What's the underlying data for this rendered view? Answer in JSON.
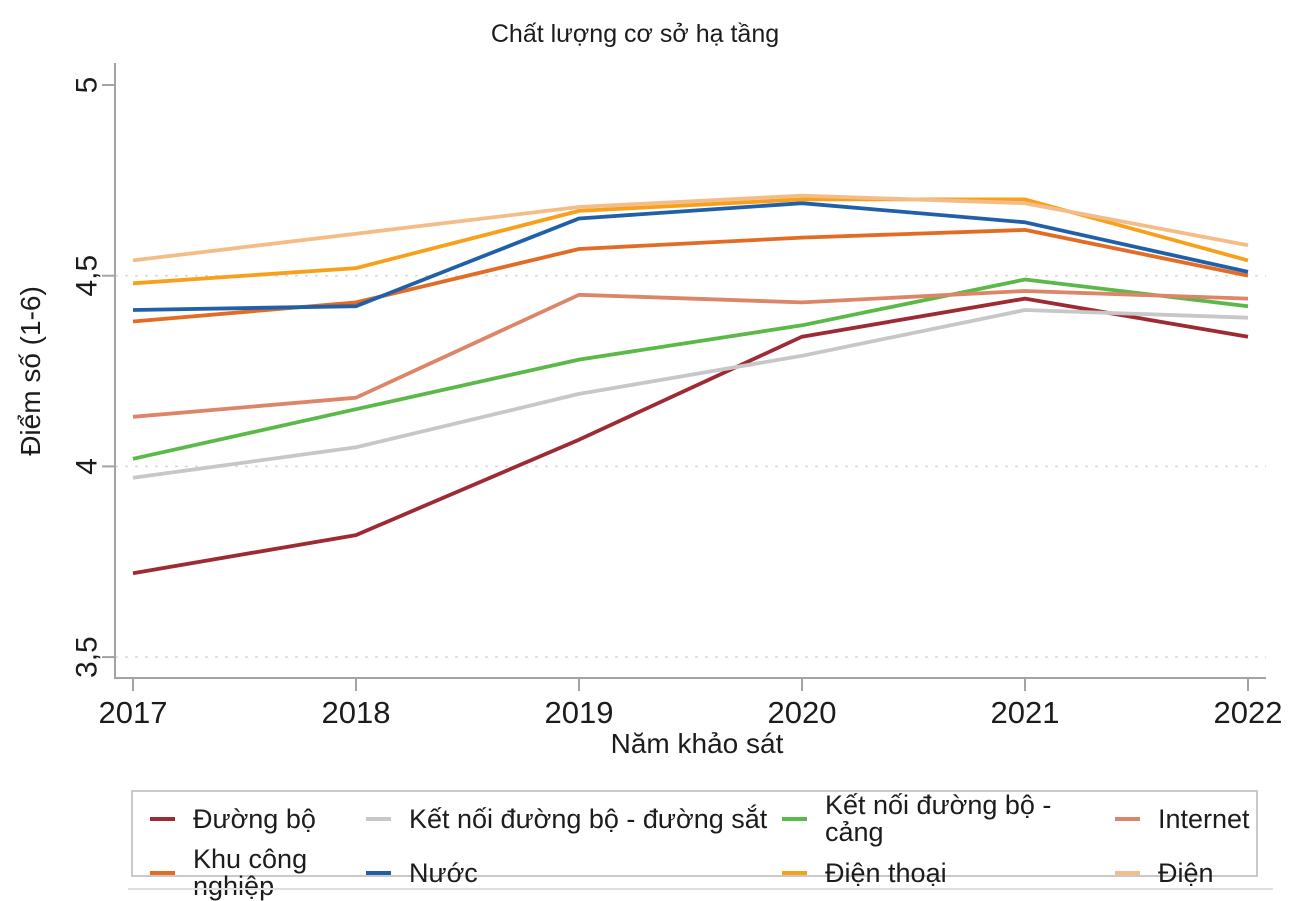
{
  "chart_data": {
    "type": "line",
    "title": "Chất lượng cơ sở hạ tầng",
    "xlabel": "Năm khảo sát",
    "ylabel": "Điểm số (1-6)",
    "x": [
      2017,
      2018,
      2019,
      2020,
      2021,
      2022
    ],
    "xticklabels": [
      "2017",
      "2018",
      "2019",
      "2020",
      "2021",
      "2022"
    ],
    "ylim": [
      3.5,
      5
    ],
    "yticks": [
      5,
      4.5,
      4,
      3.5
    ],
    "yticklabels": [
      "5",
      "4,5",
      "4",
      "3,5"
    ],
    "grid_y": [
      4.5,
      4,
      3.5
    ],
    "grid_style": "dashed",
    "legend_position": "bottom",
    "series": [
      {
        "id": "duong-bo",
        "label": "Đường bộ",
        "color": "#9e2a33",
        "values": [
          3.72,
          3.82,
          4.07,
          4.34,
          4.44,
          4.34
        ]
      },
      {
        "id": "ket-noi-duong-bo-duong-sat",
        "label": "Kết nối đường bộ - đường sắt",
        "color": "#c7c7c7",
        "values": [
          3.97,
          4.05,
          4.19,
          4.29,
          4.41,
          4.39
        ]
      },
      {
        "id": "ket-noi-duong-bo-cang",
        "label": "Kết nối đường bộ - cảng",
        "color": "#5ab948",
        "values": [
          4.02,
          4.15,
          4.28,
          4.37,
          4.49,
          4.42
        ]
      },
      {
        "id": "internet",
        "label": "Internet",
        "color": "#dd8569",
        "values": [
          4.13,
          4.18,
          4.45,
          4.43,
          4.46,
          4.44
        ]
      },
      {
        "id": "khu-cong-nghiep",
        "label": "Khu công nghiệp",
        "color": "#e36c25",
        "values": [
          4.38,
          4.43,
          4.57,
          4.6,
          4.62,
          4.5
        ]
      },
      {
        "id": "nuoc",
        "label": "Nước",
        "color": "#2160a8",
        "values": [
          4.41,
          4.42,
          4.65,
          4.69,
          4.64,
          4.51
        ]
      },
      {
        "id": "dien-thoai",
        "label": "Điện thoại",
        "color": "#f7a01b",
        "values": [
          4.48,
          4.52,
          4.67,
          4.7,
          4.7,
          4.54
        ]
      },
      {
        "id": "dien",
        "label": "Điện",
        "color": "#f4bd88",
        "values": [
          4.54,
          4.61,
          4.68,
          4.71,
          4.69,
          4.58
        ]
      }
    ],
    "legend_order": [
      "duong-bo",
      "ket-noi-duong-bo-duong-sat",
      "ket-noi-duong-bo-cang",
      "internet",
      "khu-cong-nghiep",
      "nuoc",
      "dien-thoai",
      "dien"
    ]
  },
  "colors": {
    "text": "#1c1c1c",
    "axis": "#a3a3a3",
    "gridline": "#d9d9d9",
    "legend_border": "#c9c9c9",
    "background": "#ffffff"
  }
}
